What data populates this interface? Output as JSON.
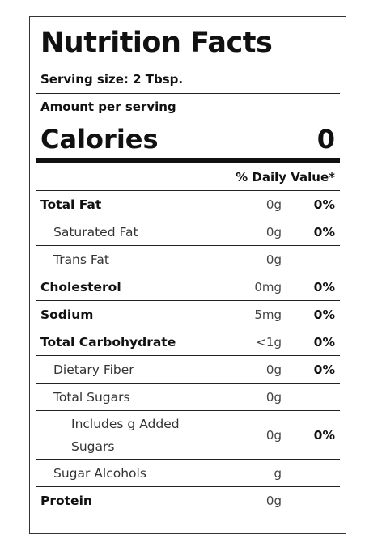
{
  "label": {
    "title": "Nutrition Facts",
    "serving_size": "Serving size: 2 Tbsp.",
    "amount_per_serving": "Amount per serving",
    "calories_label": "Calories",
    "calories_value": "0",
    "daily_value_header": "% Daily Value*",
    "rows": [
      {
        "name": "Total Fat",
        "amount": "0g",
        "dv": "0%"
      },
      {
        "name": "Saturated Fat",
        "amount": "0g",
        "dv": "0%"
      },
      {
        "name": "Trans Fat",
        "amount": "0g",
        "dv": ""
      },
      {
        "name": "Cholesterol",
        "amount": "0mg",
        "dv": "0%"
      },
      {
        "name": "Sodium",
        "amount": "5mg",
        "dv": "0%"
      },
      {
        "name": "Total Carbohydrate",
        "amount": "<1g",
        "dv": "0%"
      },
      {
        "name": "Dietary Fiber",
        "amount": "0g",
        "dv": "0%"
      },
      {
        "name": "Total Sugars",
        "amount": "0g",
        "dv": ""
      },
      {
        "name": "Includes g Added Sugars",
        "amount": "0g",
        "dv": "0%"
      },
      {
        "name": "Sugar Alcohols",
        "amount": "g",
        "dv": ""
      },
      {
        "name": "Protein",
        "amount": "0g",
        "dv": ""
      }
    ]
  }
}
